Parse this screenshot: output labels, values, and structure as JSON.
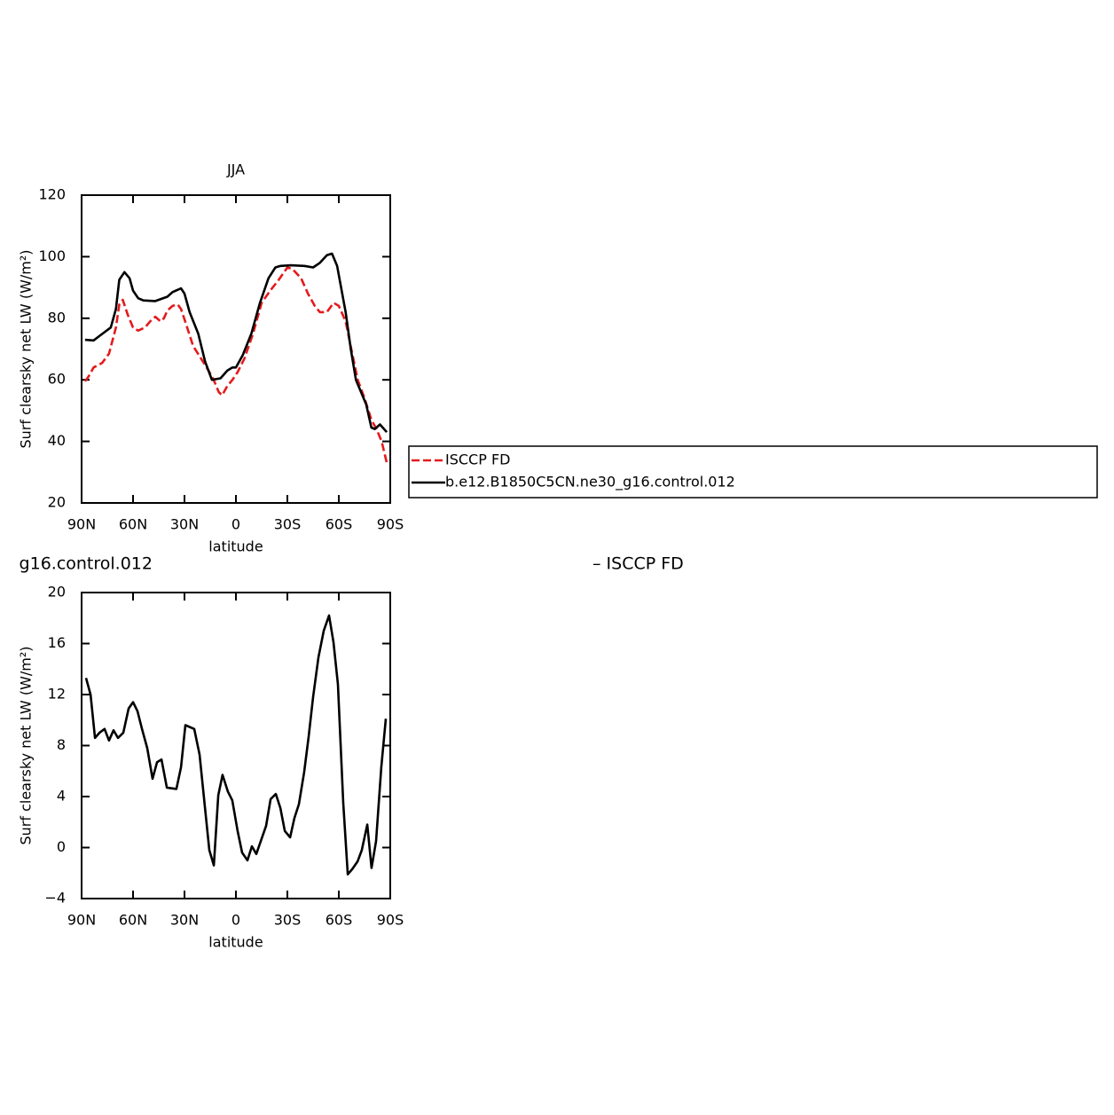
{
  "chart_data": [
    {
      "type": "line",
      "title": "JJA",
      "xlabel": "latitude",
      "ylabel": "Surf clearsky net LW (W/m²)",
      "xlim": [
        90,
        -90
      ],
      "ylim": [
        20,
        120
      ],
      "xticks": [
        {
          "value": 90,
          "label": "90N"
        },
        {
          "value": 60,
          "label": "60N"
        },
        {
          "value": 30,
          "label": "30N"
        },
        0,
        {
          "value": -30,
          "label": "30S"
        },
        {
          "value": -60,
          "label": "60S"
        },
        {
          "value": -90,
          "label": "90S"
        }
      ],
      "yticks": [
        20,
        40,
        60,
        80,
        100,
        120
      ],
      "legend": "outside-right",
      "series": [
        {
          "name": "ISCCP FD",
          "color": "#e41a1c",
          "dashed": true,
          "x": [
            88,
            86,
            83,
            78,
            74,
            70,
            68,
            66,
            63,
            60,
            57,
            53,
            50,
            47,
            44,
            42,
            40,
            37,
            34,
            32,
            29,
            25,
            21,
            16,
            13,
            10,
            8,
            5,
            2,
            -1,
            -5,
            -10,
            -15,
            -20,
            -25,
            -30,
            -33,
            -38,
            -42,
            -46,
            -49,
            -53,
            -57,
            -60,
            -64,
            -68,
            -71,
            -75,
            -79,
            -82,
            -85,
            -88
          ],
          "values": [
            59.5,
            61,
            64,
            65.5,
            68.5,
            77,
            84.5,
            86,
            81,
            77,
            76,
            77,
            79,
            80.5,
            79,
            80,
            82.5,
            84,
            84.5,
            83,
            78,
            71,
            67.5,
            63,
            60,
            56,
            55,
            58,
            60,
            62.5,
            67,
            75,
            85,
            89,
            92.5,
            96.5,
            96,
            93,
            88,
            84,
            82,
            82,
            85,
            84,
            79,
            68,
            60,
            54,
            47,
            44,
            40,
            33
          ]
        },
        {
          "name": "b.e12.B1850C5CN.ne30_g16.control.012",
          "color": "#000000",
          "dashed": false,
          "x": [
            88,
            83,
            79,
            73,
            70,
            68,
            65,
            62,
            60,
            57,
            54,
            47,
            40,
            37,
            32,
            30,
            27,
            22,
            18,
            14,
            9,
            5,
            2,
            0,
            -4,
            -9,
            -14,
            -19,
            -23,
            -26,
            -32,
            -40,
            -45,
            -49,
            -53,
            -56,
            -59,
            -64,
            -67,
            -70,
            -76,
            -79,
            -81,
            -84,
            -88
          ],
          "values": [
            73,
            72.8,
            74.5,
            77,
            83,
            92.5,
            95,
            93,
            89,
            86.5,
            85.8,
            85.6,
            87,
            88.5,
            89.7,
            88,
            82,
            75,
            66,
            60,
            60.5,
            63,
            64,
            64,
            68,
            75,
            85,
            93,
            96.5,
            97,
            97.2,
            97,
            96.5,
            98,
            100.5,
            101,
            97,
            82,
            70,
            60,
            52,
            44.5,
            44,
            45.5,
            43
          ]
        }
      ]
    },
    {
      "type": "line",
      "title_left": "g16.control.012",
      "title_right": "– ISCCP FD",
      "xlabel": "latitude",
      "ylabel": "Surf clearsky net LW (W/m²)",
      "xlim": [
        90,
        -90
      ],
      "ylim": [
        -4,
        20
      ],
      "xticks": [
        {
          "value": 90,
          "label": "90N"
        },
        {
          "value": 60,
          "label": "60N"
        },
        {
          "value": 30,
          "label": "30N"
        },
        0,
        {
          "value": -30,
          "label": "30S"
        },
        {
          "value": -60,
          "label": "60S"
        },
        {
          "value": -90,
          "label": "90S"
        }
      ],
      "yticks": [
        {
          "value": -4,
          "label": "−4"
        },
        0,
        4,
        8,
        12,
        16,
        20
      ],
      "series": [
        {
          "color": "#000000",
          "x": [
            87.4,
            84.8,
            82.2,
            79.6,
            76.6,
            74,
            71.4,
            68.8,
            65.7,
            62.6,
            60,
            57.4,
            54.8,
            51.7,
            48.6,
            46,
            43.4,
            40.3,
            34.7,
            32,
            29.5,
            24.3,
            21.2,
            18.1,
            15.5,
            12.9,
            10.3,
            7.8,
            4.7,
            2.1,
            -1,
            -3.6,
            -6.7,
            -9.3,
            -11.9,
            -15,
            -17.6,
            -20.2,
            -23.3,
            -25.9,
            -28.5,
            -31.6,
            -34.1,
            -36.7,
            -39.8,
            -42.4,
            -45,
            -48.1,
            -51.2,
            -54.3,
            -56.9,
            -59.5,
            -62.6,
            -65.2,
            -67.8,
            -70.9,
            -73.4,
            -76.6,
            -79.1,
            -81.7,
            -84.8,
            -87.4
          ],
          "values": [
            13.3,
            12,
            8.6,
            9,
            9.3,
            8.4,
            9.2,
            8.6,
            9,
            10.9,
            11.4,
            10.7,
            9.3,
            7.8,
            5.4,
            6.7,
            6.9,
            4.7,
            4.6,
            6.3,
            9.6,
            9.3,
            7.3,
            3.2,
            -0.2,
            -1.4,
            4.1,
            5.7,
            4.4,
            3.7,
            1.3,
            -0.4,
            -1,
            0.1,
            -0.5,
            0.7,
            1.7,
            3.8,
            4.2,
            3.1,
            1.3,
            0.8,
            2.3,
            3.4,
            5.9,
            8.7,
            11.8,
            14.9,
            17,
            18.2,
            16.1,
            12.8,
            3.5,
            -2.1,
            -1.7,
            -1.1,
            -0.2,
            1.8,
            -1.6,
            0.5,
            6.3,
            10.1
          ]
        }
      ]
    }
  ]
}
